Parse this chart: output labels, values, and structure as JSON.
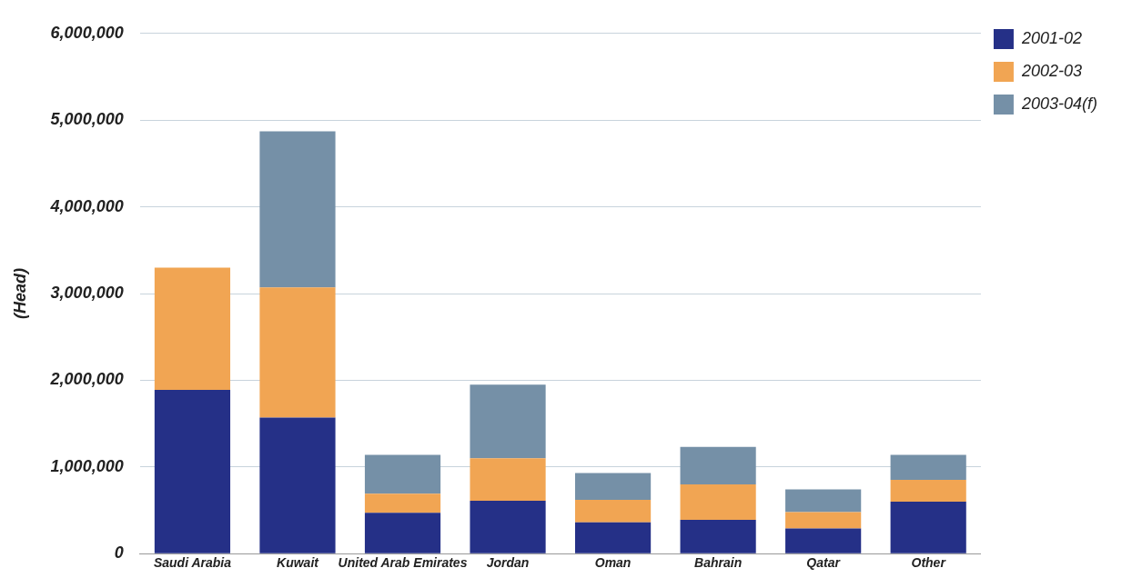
{
  "chart_data": {
    "type": "bar",
    "ylabel": "(Head)",
    "categories": [
      "Saudi Arabia",
      "Kuwait",
      "United Arab Emirates",
      "Jordan",
      "Oman",
      "Bahrain",
      "Qatar",
      "Other"
    ],
    "series": [
      {
        "name": "2001-02",
        "color": "#253087",
        "values": [
          1890000,
          1570000,
          470000,
          610000,
          360000,
          390000,
          290000,
          600000
        ]
      },
      {
        "name": "2002-03",
        "color": "#f1a553",
        "values": [
          1410000,
          1500000,
          220000,
          490000,
          260000,
          410000,
          190000,
          250000
        ]
      },
      {
        "name": "2003-04(f)",
        "color": "#7590a7",
        "values": [
          null,
          1800000,
          450000,
          850000,
          310000,
          430000,
          260000,
          290000
        ]
      }
    ],
    "stacked": true,
    "ylim": [
      0,
      6000000
    ],
    "yticks": [
      {
        "value": 0,
        "label": "0"
      },
      {
        "value": 1000000,
        "label": "1,000,000"
      },
      {
        "value": 2000000,
        "label": "2,000,000"
      },
      {
        "value": 3000000,
        "label": "3,000,000"
      },
      {
        "value": 4000000,
        "label": "4,000,000"
      },
      {
        "value": 5000000,
        "label": "5,000,000"
      },
      {
        "value": 6000000,
        "label": "6,000,000"
      }
    ],
    "grid": "y",
    "legend": "top right"
  }
}
